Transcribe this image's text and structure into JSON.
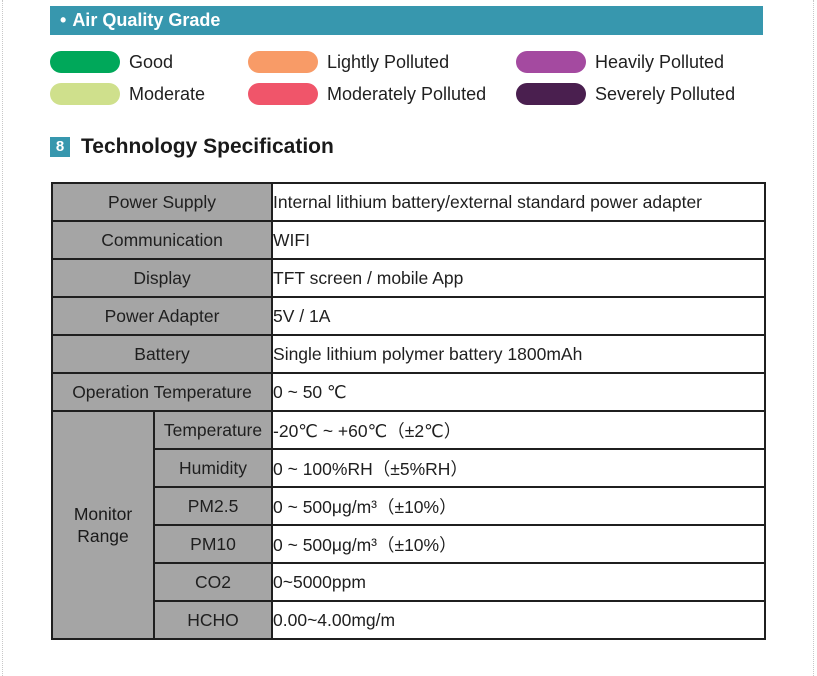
{
  "air_quality": {
    "header": "Air Quality Grade",
    "bullet": "•",
    "legend": [
      {
        "label": "Good",
        "color": "#00a85a"
      },
      {
        "label": "Moderate",
        "color": "#cfe08c"
      },
      {
        "label": "Lightly Polluted",
        "color": "#f89b67"
      },
      {
        "label": "Moderately Polluted",
        "color": "#f0556a"
      },
      {
        "label": "Heavily Polluted",
        "color": "#a44aa0"
      },
      {
        "label": "Severely Polluted",
        "color": "#4a1f4f"
      }
    ]
  },
  "spec": {
    "number": "8",
    "title": "Technology Specification",
    "rows": [
      {
        "label": "Power Supply",
        "value": "Internal lithium battery/external standard power adapter"
      },
      {
        "label": "Communication",
        "value": "WIFI"
      },
      {
        "label": "Display",
        "value": "TFT screen / mobile App"
      },
      {
        "label": "Power Adapter",
        "value": "5V / 1A"
      },
      {
        "label": "Battery",
        "value": "Single lithium polymer battery 1800mAh"
      },
      {
        "label": "Operation Temperature",
        "value": "0 ~ 50 ℃"
      }
    ],
    "monitor": {
      "line1": "Monitor",
      "line2": "Range",
      "rows": [
        {
          "label": "Temperature",
          "value": "-20℃ ~ +60℃（±2℃）"
        },
        {
          "label": "Humidity",
          "value": "0 ~ 100%RH（±5%RH）"
        },
        {
          "label": "PM2.5",
          "value": "0 ~ 500μg/m³（±10%）"
        },
        {
          "label": "PM10",
          "value": "0 ~ 500μg/m³（±10%）"
        },
        {
          "label": "CO2",
          "value": "0~5000ppm"
        },
        {
          "label": "HCHO",
          "value": "0.00~4.00mg/m"
        }
      ]
    }
  }
}
